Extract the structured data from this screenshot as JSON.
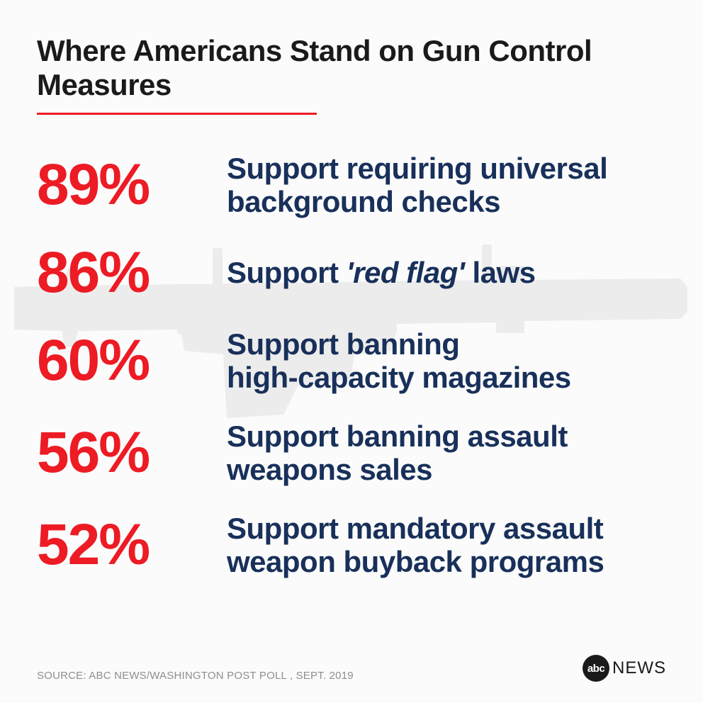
{
  "title": "Where Americans Stand on Gun Control Measures",
  "title_color": "#1a1a1a",
  "title_fontsize": 42,
  "rule_color": "#ed1b24",
  "percent_color": "#ed1b24",
  "percent_fontsize": 82,
  "desc_color": "#18305a",
  "desc_fontsize": 42,
  "background_color": "#fbfbfb",
  "rifle_silhouette_color": "#ececec",
  "items": [
    {
      "pct": "89%",
      "desc": "Support requiring universal background checks"
    },
    {
      "pct": "86%",
      "desc": "Support <em>'red flag'</em> laws"
    },
    {
      "pct": "60%",
      "desc": "Support banning<br>high-capacity magazines"
    },
    {
      "pct": "56%",
      "desc": "Support banning assault weapons sales"
    },
    {
      "pct": "52%",
      "desc": "Support mandatory assault weapon buyback programs"
    }
  ],
  "source": "SOURCE: ABC NEWS/WASHINGTON POST POLL , SEPT. 2019",
  "brand_circle": "abc",
  "brand_text": "NEWS"
}
